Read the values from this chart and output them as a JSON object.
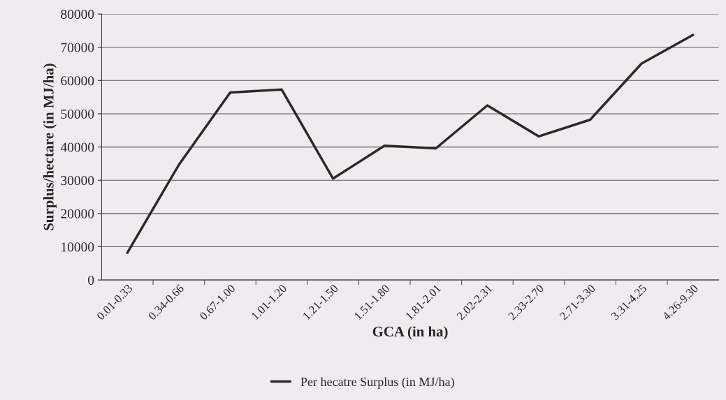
{
  "chart_data": {
    "type": "line",
    "xlabel": "GCA (in ha)",
    "ylabel": "Surplus/hectare (in MJ/ha)",
    "categories": [
      "0.01-0.33",
      "0.34-0.66",
      "0.67-1.00",
      "1.01-1.20",
      "1.21-1.50",
      "1.51-1.80",
      "1.81-2.01",
      "2.02-2.31",
      "2.33-2.70",
      "2.71-3.30",
      "3.31-4.25",
      "4.26-9.30"
    ],
    "series": [
      {
        "name": "Per hecatre Surplus (in MJ/ha)",
        "color": "#2a2a2a",
        "values": [
          8200,
          34600,
          56400,
          57300,
          30500,
          40400,
          39600,
          52500,
          43200,
          48200,
          65100,
          73700
        ]
      }
    ],
    "ylim": [
      0,
      80000
    ],
    "yticks": [
      0,
      10000,
      20000,
      30000,
      40000,
      50000,
      60000,
      70000,
      80000
    ],
    "grid": "y",
    "legend": "bottom",
    "marker": "none",
    "line_style": "solid"
  }
}
